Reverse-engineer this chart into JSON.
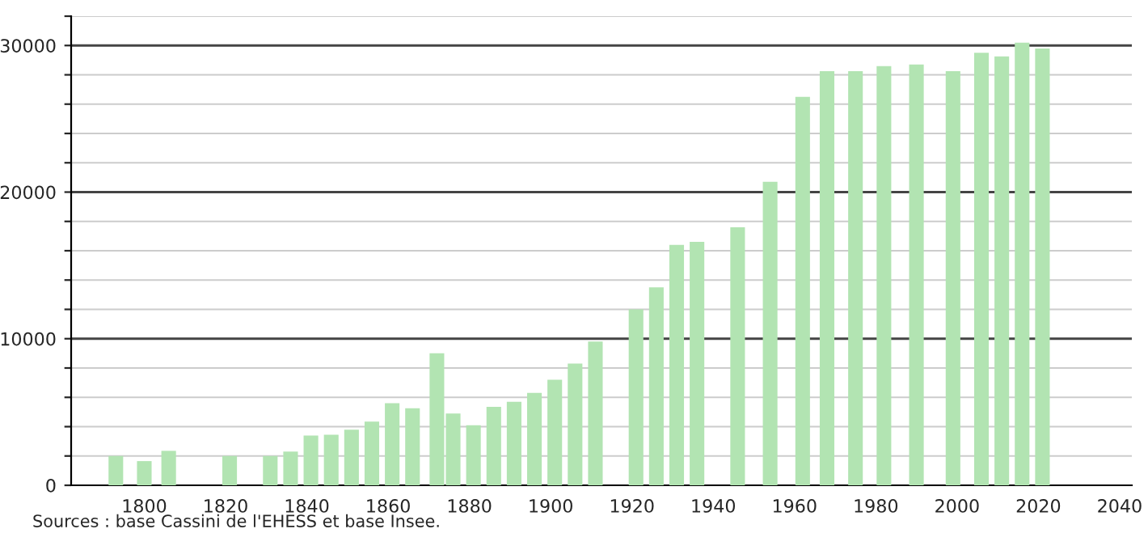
{
  "chart_data": {
    "type": "bar",
    "x": [
      1793,
      1800,
      1806,
      1821,
      1831,
      1836,
      1841,
      1846,
      1851,
      1856,
      1861,
      1866,
      1872,
      1876,
      1881,
      1886,
      1891,
      1896,
      1901,
      1906,
      1911,
      1921,
      1926,
      1931,
      1936,
      1946,
      1954,
      1962,
      1968,
      1975,
      1982,
      1990,
      1999,
      2006,
      2011,
      2016,
      2021
    ],
    "values": [
      2000,
      1650,
      2350,
      2000,
      2000,
      2300,
      3400,
      3450,
      3800,
      4350,
      5600,
      5250,
      9000,
      4900,
      4100,
      5350,
      5700,
      6300,
      7200,
      8300,
      9800,
      12000,
      13500,
      16400,
      16600,
      17600,
      20700,
      26500,
      28250,
      28250,
      28600,
      28700,
      28250,
      29500,
      29250,
      30200,
      29800
    ],
    "color": "#b2e4b2",
    "xlim": [
      1782,
      2043
    ],
    "xticks": [
      1800,
      1820,
      1840,
      1860,
      1880,
      1900,
      1920,
      1940,
      1960,
      1980,
      2000,
      2020,
      2040
    ],
    "ylim": [
      0,
      32000
    ],
    "yticks": [
      0,
      {
        "value": 2000,
        "label": null
      },
      {
        "value": 4000,
        "label": null
      },
      {
        "value": 6000,
        "label": null
      },
      {
        "value": 8000,
        "label": null
      },
      10000,
      {
        "value": 12000,
        "label": null
      },
      {
        "value": 14000,
        "label": null
      },
      {
        "value": 16000,
        "label": null
      },
      {
        "value": 18000,
        "label": null
      },
      20000,
      {
        "value": 22000,
        "label": null
      },
      {
        "value": 24000,
        "label": null
      },
      {
        "value": 26000,
        "label": null
      },
      {
        "value": 28000,
        "label": null
      },
      30000,
      {
        "value": 32000,
        "label": null
      }
    ],
    "grid": "y",
    "annotations": [
      "Sources : base Cassini de l'EHESS et base Insee."
    ]
  }
}
